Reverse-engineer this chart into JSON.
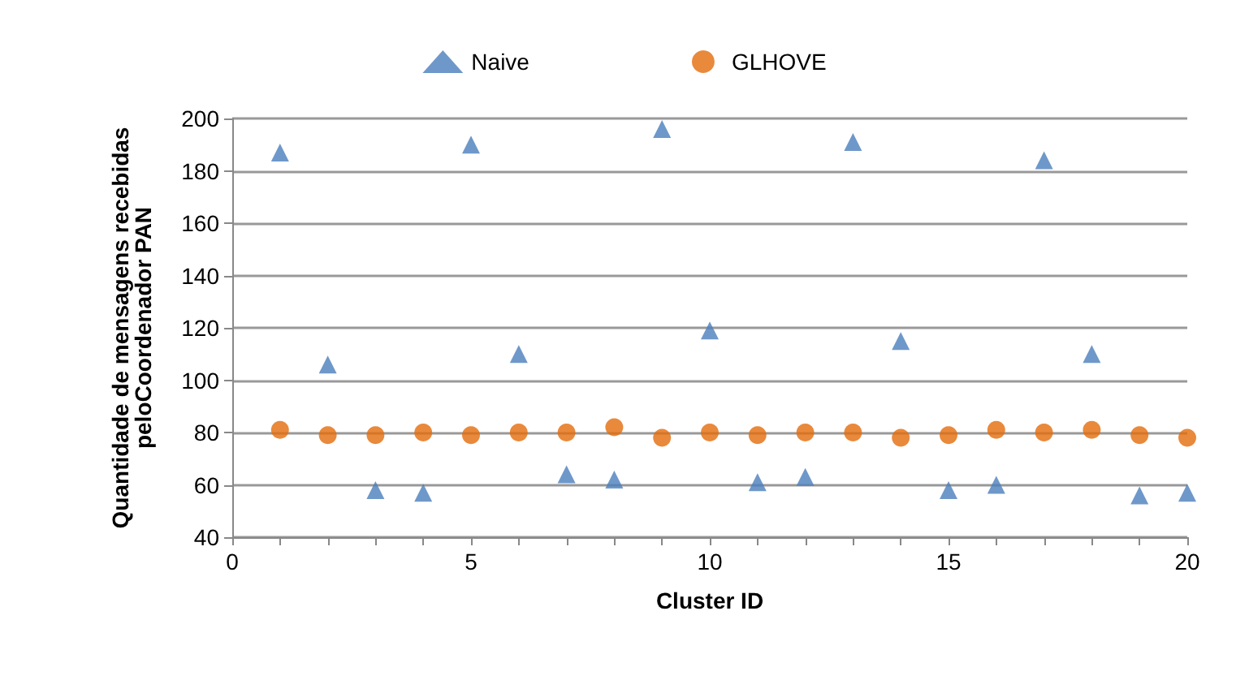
{
  "chart_data": {
    "type": "scatter",
    "xlabel": "Cluster ID",
    "ylabel": "Quantidade de mensagens recebidas\npeloCoordenador PAN",
    "x": [
      1,
      2,
      3,
      4,
      5,
      6,
      7,
      8,
      9,
      10,
      11,
      12,
      13,
      14,
      15,
      16,
      17,
      18,
      19,
      20
    ],
    "series": [
      {
        "name": "Naive",
        "color": "#4a7ebb",
        "marker": "triangle",
        "values": [
          187,
          106,
          58,
          57,
          190,
          110,
          64,
          62,
          196,
          119,
          61,
          63,
          191,
          115,
          58,
          60,
          184,
          110,
          56,
          57
        ]
      },
      {
        "name": "GLHOVE",
        "color": "#e46c0a",
        "marker": "circle",
        "values": [
          81,
          79,
          79,
          80,
          79,
          80,
          80,
          82,
          78,
          80,
          79,
          80,
          80,
          78,
          79,
          81,
          80,
          81,
          79,
          78
        ]
      }
    ],
    "xlim": [
      0,
      20
    ],
    "xticks": [
      0,
      {
        "value": 1,
        "label": null
      },
      {
        "value": 2,
        "label": null
      },
      {
        "value": 3,
        "label": null
      },
      {
        "value": 4,
        "label": null
      },
      5,
      {
        "value": 6,
        "label": null
      },
      {
        "value": 7,
        "label": null
      },
      {
        "value": 8,
        "label": null
      },
      {
        "value": 9,
        "label": null
      },
      10,
      {
        "value": 11,
        "label": null
      },
      {
        "value": 12,
        "label": null
      },
      {
        "value": 13,
        "label": null
      },
      {
        "value": 14,
        "label": null
      },
      15,
      {
        "value": 16,
        "label": null
      },
      {
        "value": 17,
        "label": null
      },
      {
        "value": 18,
        "label": null
      },
      {
        "value": 19,
        "label": null
      },
      20
    ],
    "ylim": [
      40,
      200
    ],
    "yticks": [
      40,
      60,
      80,
      100,
      120,
      140,
      160,
      180,
      200
    ],
    "grid": "y",
    "legend": "top"
  }
}
